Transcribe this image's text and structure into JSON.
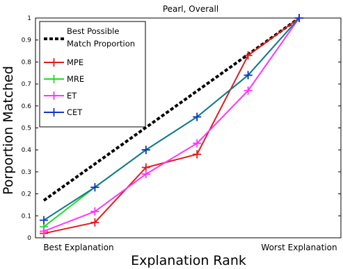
{
  "chart_data": {
    "type": "line",
    "title": "Pearl, Overall",
    "xlabel": "Explanation Rank",
    "ylabel": "Porportion Matched",
    "x_end_labels": [
      "Best Explanation",
      "Worst Explanation"
    ],
    "x": [
      1,
      2,
      3,
      4,
      5,
      6
    ],
    "ylim": [
      0,
      1
    ],
    "yticks": [
      0,
      0.1,
      0.2,
      0.3,
      0.4,
      0.5,
      0.6,
      0.7,
      0.8,
      0.9,
      1
    ],
    "ytick_labels": [
      "0",
      "0.1",
      "0.2",
      "0.3",
      "0.4",
      "0.5",
      "0.6",
      "0.7",
      "0.8",
      "0.9",
      "1"
    ],
    "grid": false,
    "legend_position": "top-left",
    "series": [
      {
        "name": "Best Possible Match Proportion",
        "legend_lines": [
          "Best Possible",
          "Match Proportion"
        ],
        "x": [
          1,
          6
        ],
        "values": [
          0.17,
          1.0
        ],
        "color": "#000000",
        "style": "dashed",
        "marker": "none"
      },
      {
        "name": "MPE",
        "x": [
          1,
          2,
          3,
          4,
          5,
          6
        ],
        "values": [
          0.02,
          0.07,
          0.32,
          0.38,
          0.83,
          1.0
        ],
        "color": "#e31a1c",
        "style": "solid",
        "marker": "plus"
      },
      {
        "name": "MRE",
        "x": [
          1,
          2,
          3,
          4,
          5,
          6
        ],
        "values": [
          0.05,
          0.23,
          0.4,
          0.55,
          0.74,
          1.0
        ],
        "color": "#22dd22",
        "style": "solid",
        "marker": "plus"
      },
      {
        "name": "ET",
        "x": [
          1,
          2,
          3,
          4,
          5,
          6
        ],
        "values": [
          0.03,
          0.12,
          0.29,
          0.43,
          0.67,
          1.0
        ],
        "color": "#ff33ff",
        "style": "solid",
        "marker": "plus"
      },
      {
        "name": "CET",
        "x": [
          1,
          2,
          3,
          4,
          5,
          6
        ],
        "values": [
          0.08,
          0.23,
          0.4,
          0.55,
          0.74,
          1.0
        ],
        "color": "#1133cc",
        "style": "solid",
        "marker": "plus"
      }
    ],
    "overlap_color": "#11778f"
  }
}
